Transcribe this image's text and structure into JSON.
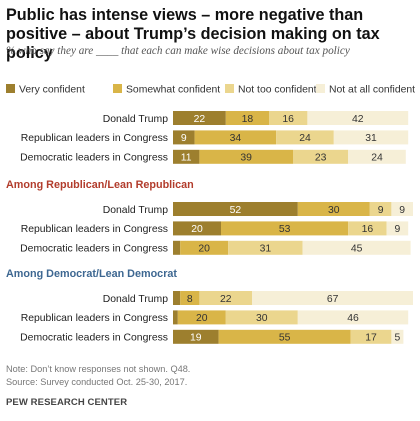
{
  "chart_data": {
    "type": "bar",
    "stacked": true,
    "orientation": "horizontal",
    "title": "Public has intense views – more negative than positive – about Trump’s decision making on tax policy",
    "subtitle": "% who say they are ____ that each can make wise decisions about tax policy",
    "legend": {
      "placement": "top",
      "entries": [
        {
          "name": "Very confident",
          "color": "#9d7f2e"
        },
        {
          "name": "Somewhat confident",
          "color": "#d9b548"
        },
        {
          "name": "Not too confident",
          "color": "#ebd68e"
        },
        {
          "name": "Not at all confident",
          "color": "#f6efd7"
        }
      ]
    },
    "xlim": [
      0,
      100
    ],
    "groups": [
      {
        "heading": "",
        "heading_color": "",
        "rows": [
          {
            "label": "Donald Trump",
            "values": [
              22,
              18,
              16,
              42
            ]
          },
          {
            "label": "Republican leaders in Congress",
            "values": [
              9,
              34,
              24,
              31
            ]
          },
          {
            "label": "Democratic leaders in Congress",
            "values": [
              11,
              39,
              23,
              24
            ]
          }
        ]
      },
      {
        "heading": "Among Republican/Lean Republican",
        "heading_color": "#b23c2c",
        "rows": [
          {
            "label": "Donald Trump",
            "values": [
              52,
              30,
              9,
              9
            ]
          },
          {
            "label": "Republican leaders in Congress",
            "values": [
              20,
              53,
              16,
              9
            ]
          },
          {
            "label": "Democratic leaders in Congress",
            "values": [
              3,
              20,
              31,
              45
            ]
          }
        ]
      },
      {
        "heading": "Among Democrat/Lean Democrat",
        "heading_color": "#3d6791",
        "rows": [
          {
            "label": "Donald Trump",
            "values": [
              3,
              8,
              22,
              67
            ]
          },
          {
            "label": "Republican leaders in Congress",
            "values": [
              2,
              20,
              30,
              46
            ]
          },
          {
            "label": "Democratic leaders in Congress",
            "values": [
              19,
              55,
              17,
              5
            ]
          }
        ]
      }
    ]
  },
  "notes": {
    "note": "Note: Don’t know responses not shown. Q48.",
    "source": "Source: Survey conducted Oct. 25-30, 2017.",
    "brand": "PEW RESEARCH CENTER"
  }
}
